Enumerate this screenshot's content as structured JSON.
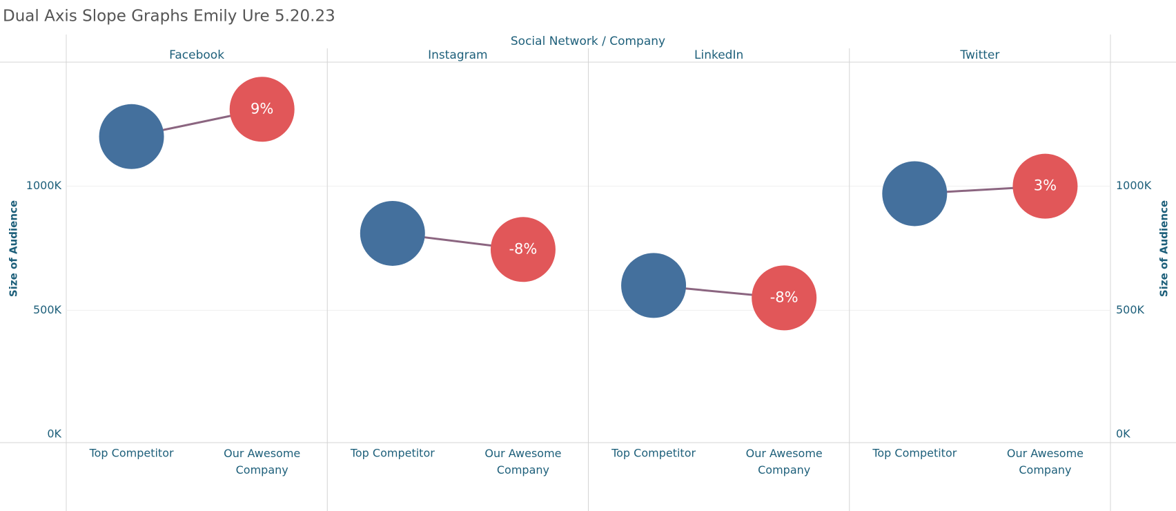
{
  "chart_data": {
    "type": "slope",
    "title": "Dual Axis Slope Graphs Emily Ure 5.20.23",
    "column_header": "Social Network / Company",
    "panels": [
      "Facebook",
      "Instagram",
      "LinkedIn",
      "Twitter"
    ],
    "ylabel": "Size of Audience",
    "y2label": "Size of Audience",
    "series": [
      {
        "name": "Top Competitor",
        "color": "#44709d",
        "values": [
          1200000,
          810000,
          600000,
          970000
        ]
      },
      {
        "name": "Our Awesome Company",
        "color": "#e15759",
        "axis": "y2",
        "values": [
          1310000,
          745000,
          550000,
          1000000
        ]
      }
    ],
    "change": {
      "values": [
        9,
        -8,
        -8,
        3
      ],
      "value_labels": [
        "9%",
        "-8%",
        "-8%",
        "3%"
      ]
    },
    "line_color": "#8b6580",
    "ylim": [
      0,
      1500000
    ],
    "yticks": [
      {
        "value": 0,
        "label": "0K"
      },
      {
        "value": 500000,
        "label": "500K"
      },
      {
        "value": 1000000,
        "label": "1000K"
      }
    ],
    "y2lim": [
      0,
      1500000
    ],
    "y2ticks": [
      {
        "value": 0,
        "label": "0K"
      },
      {
        "value": 500000,
        "label": "500K"
      },
      {
        "value": 1000000,
        "label": "1000K"
      }
    ],
    "grid": true
  }
}
